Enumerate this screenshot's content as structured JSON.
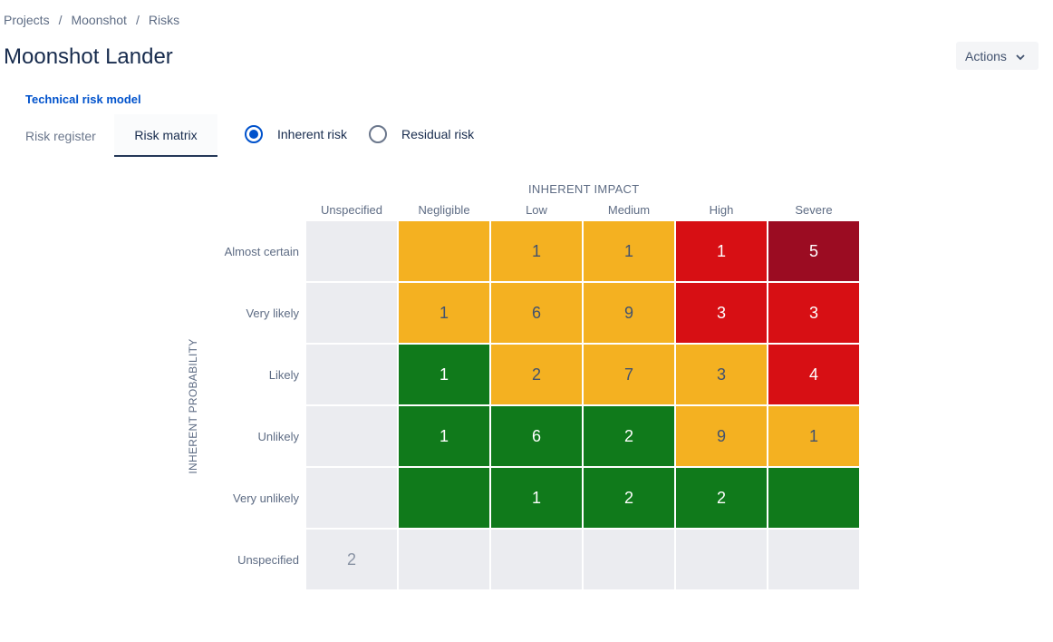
{
  "breadcrumb": [
    "Projects",
    "Moonshot",
    "Risks"
  ],
  "breadcrumb_separator": "/",
  "title": "Moonshot Lander",
  "actions_label": "Actions",
  "model_link": "Technical risk model",
  "tabs": [
    "Risk register",
    "Risk matrix"
  ],
  "active_tab": "Risk matrix",
  "radio_options": [
    {
      "label": "Inherent risk",
      "checked": true
    },
    {
      "label": "Residual risk",
      "checked": false
    }
  ],
  "matrix": {
    "x_title": "INHERENT IMPACT",
    "y_title": "INHERENT PROBABILITY",
    "columns": [
      "Unspecified",
      "Negligible",
      "Low",
      "Medium",
      "High",
      "Severe"
    ],
    "rows": [
      "Almost certain",
      "Very likely",
      "Likely",
      "Unlikely",
      "Very unlikely",
      "Unspecified"
    ],
    "values": [
      [
        "",
        "",
        "1",
        "1",
        "1",
        "5"
      ],
      [
        "",
        "1",
        "6",
        "9",
        "3",
        "3"
      ],
      [
        "",
        "1",
        "2",
        "7",
        "3",
        "4"
      ],
      [
        "",
        "1",
        "6",
        "2",
        "9",
        "1"
      ],
      [
        "",
        "",
        "1",
        "2",
        "2",
        ""
      ],
      [
        "2",
        "",
        "",
        "",
        "",
        ""
      ]
    ],
    "levels": [
      [
        "none",
        "amber",
        "amber",
        "amber",
        "red",
        "darkred"
      ],
      [
        "none",
        "amber",
        "amber",
        "amber",
        "red",
        "red"
      ],
      [
        "none",
        "green",
        "amber",
        "amber",
        "amber",
        "red"
      ],
      [
        "none",
        "green",
        "green",
        "green",
        "amber",
        "amber"
      ],
      [
        "none",
        "green",
        "green",
        "green",
        "green",
        "green"
      ],
      [
        "none",
        "none",
        "none",
        "none",
        "none",
        "none"
      ]
    ],
    "level_colors": {
      "none": "#ebecf0",
      "green": "#107a1b",
      "amber": "#f4b121",
      "red": "#d70f14",
      "darkred": "#9b0c22"
    },
    "text_colors": {
      "none": "#8993a4",
      "green": "#ffffff",
      "amber": "#42526e",
      "red": "#ffffff",
      "darkred": "#ffffff"
    }
  },
  "icons": {
    "actions_chevron": "chevron-down-icon"
  }
}
